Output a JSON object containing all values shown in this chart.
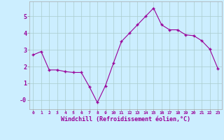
{
  "x": [
    0,
    1,
    2,
    3,
    4,
    5,
    6,
    7,
    8,
    9,
    10,
    11,
    12,
    13,
    14,
    15,
    16,
    17,
    18,
    19,
    20,
    21,
    22,
    23
  ],
  "y": [
    2.7,
    2.9,
    1.8,
    1.8,
    1.7,
    1.65,
    1.65,
    0.8,
    -0.15,
    0.85,
    2.2,
    3.5,
    4.0,
    4.5,
    5.0,
    5.5,
    4.5,
    4.2,
    4.2,
    3.9,
    3.85,
    3.55,
    3.05,
    1.9
  ],
  "line_color": "#990099",
  "marker": "+",
  "bg_color": "#cceeff",
  "grid_color": "#aacccc",
  "xlabel": "Windchill (Refroidissement éolien,°C)",
  "xlabel_color": "#990099",
  "ytick_positions": [
    0,
    1,
    2,
    3,
    4,
    5
  ],
  "ytick_labels": [
    "-0",
    "1",
    "2",
    "3",
    "4",
    "5"
  ],
  "xtick_labels": [
    "0",
    "1",
    "2",
    "3",
    "4",
    "5",
    "6",
    "7",
    "8",
    "9",
    "10",
    "11",
    "12",
    "13",
    "14",
    "15",
    "16",
    "17",
    "18",
    "19",
    "20",
    "21",
    "22",
    "23"
  ],
  "ylim": [
    -0.55,
    5.9
  ],
  "xlim": [
    -0.5,
    23.5
  ]
}
